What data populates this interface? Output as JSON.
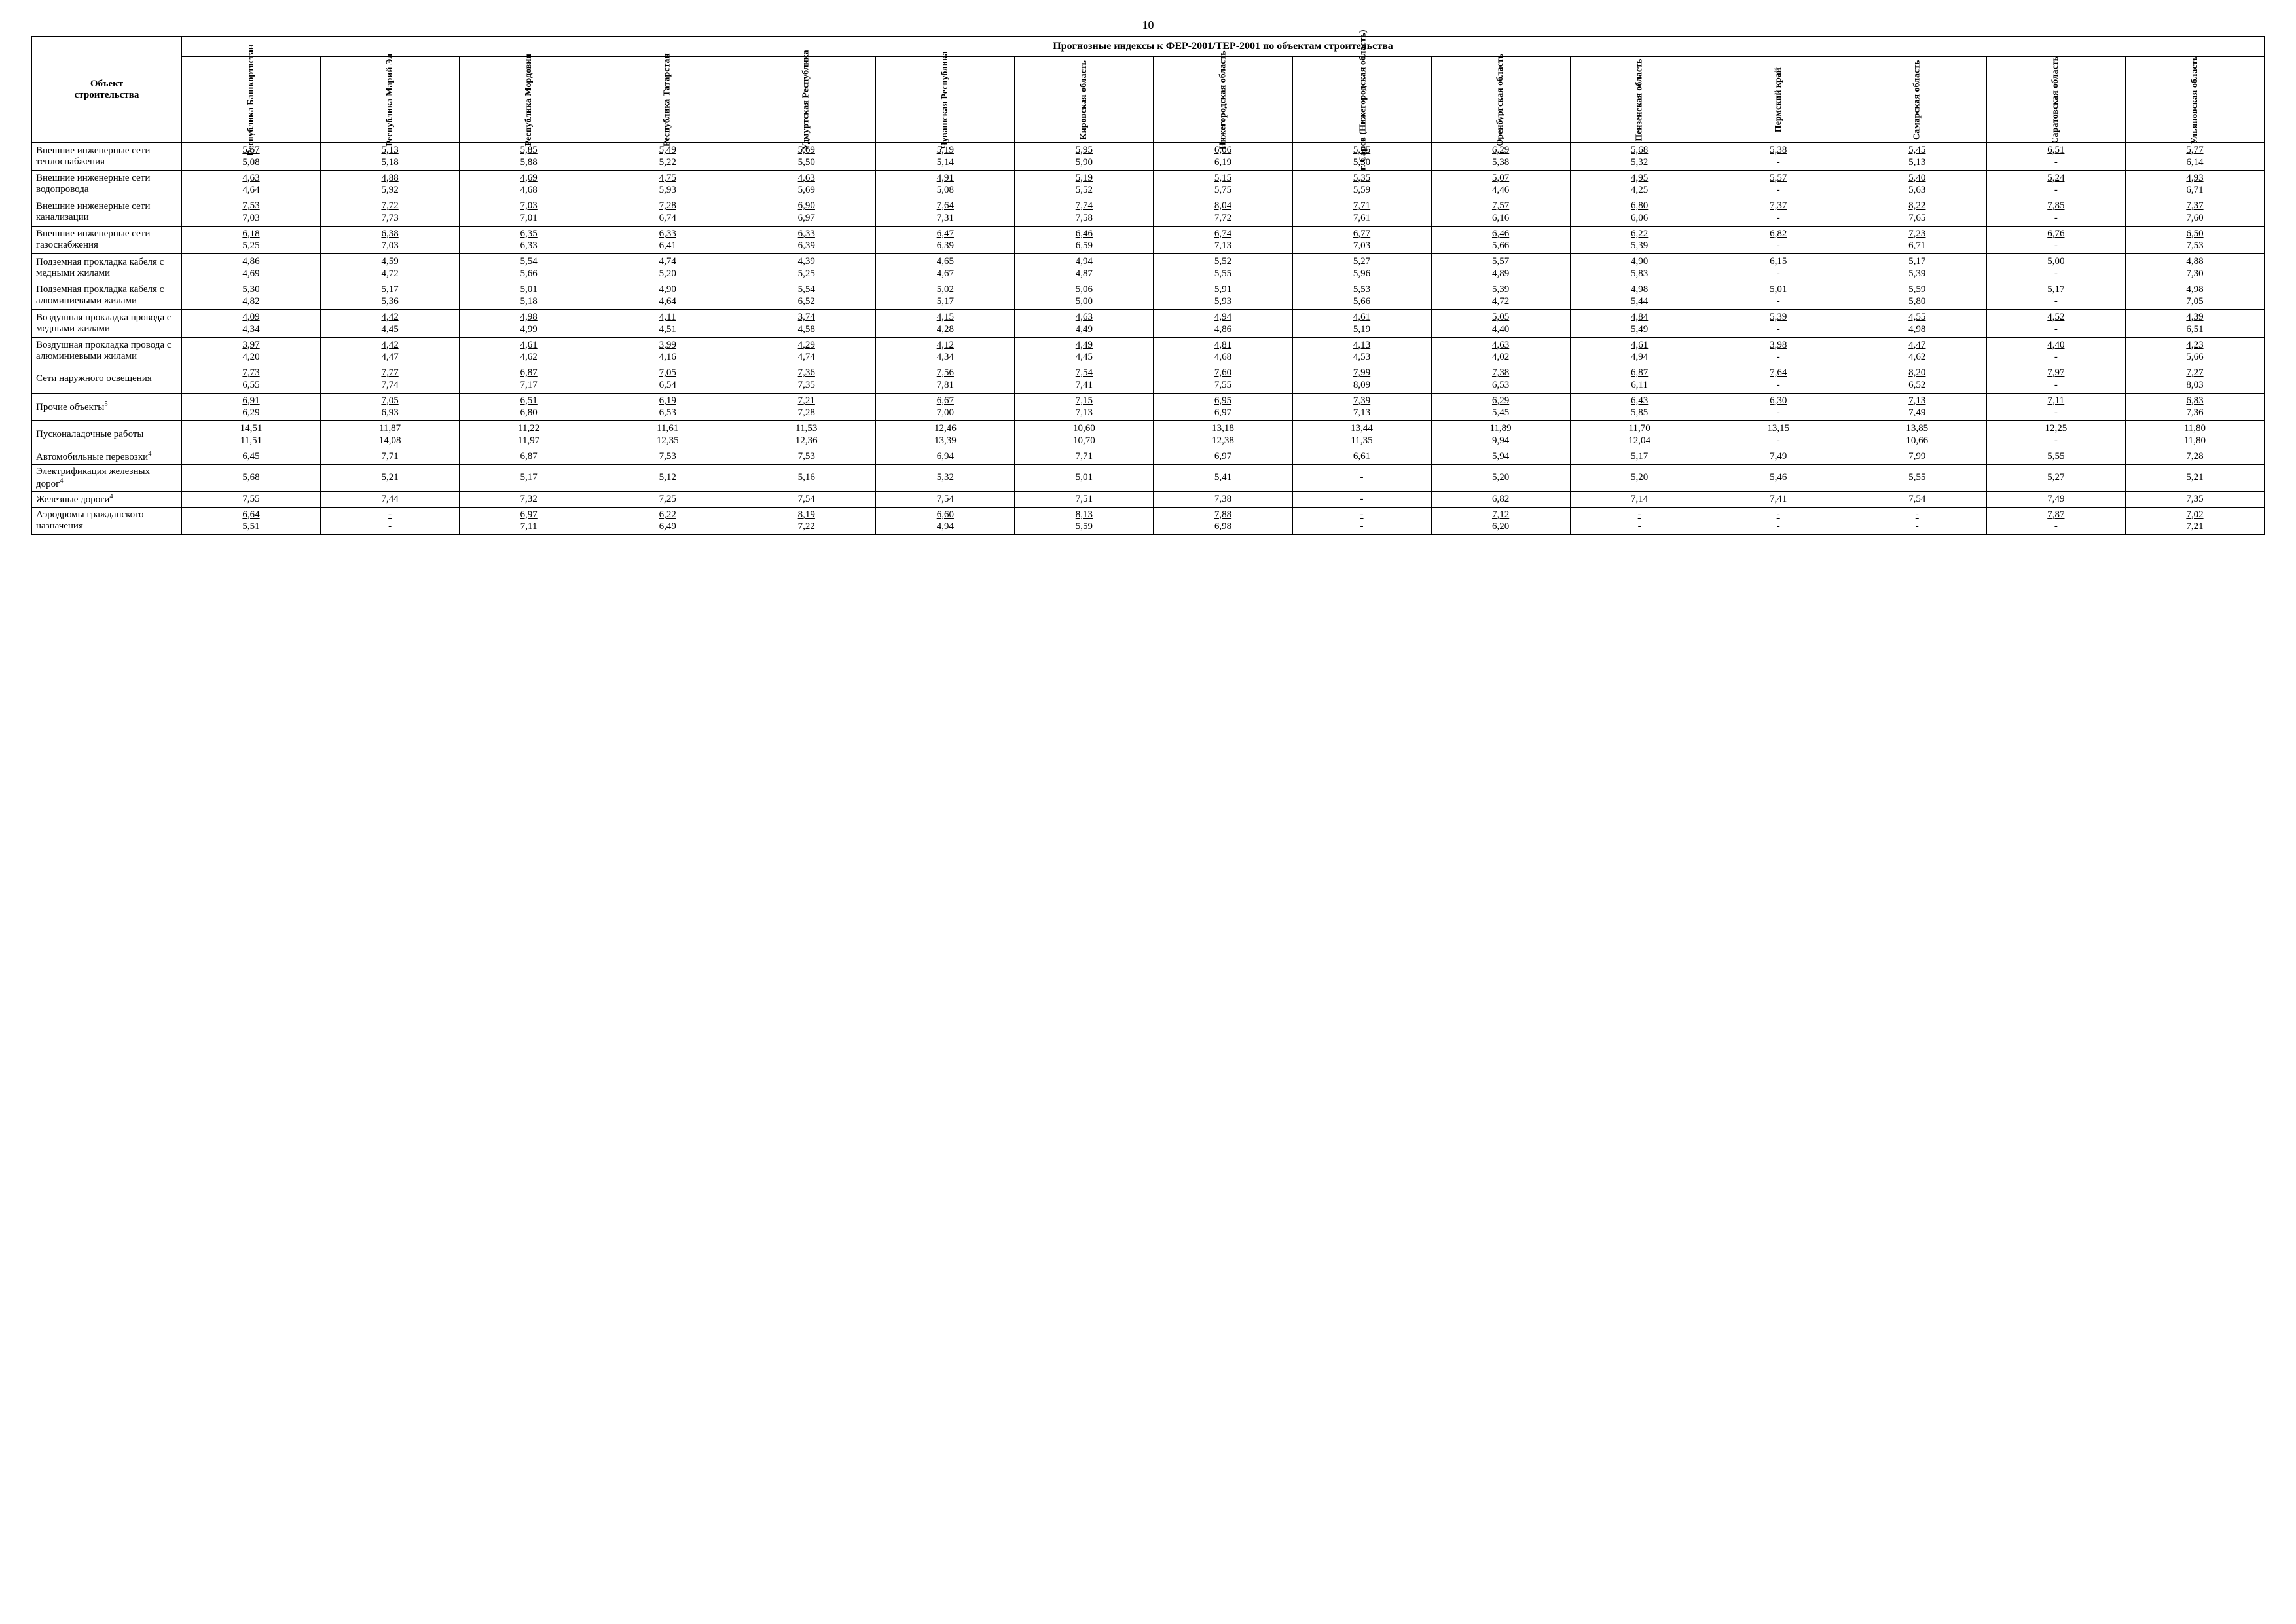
{
  "page_number": "10",
  "main_header": "Прогнозные индексы к ФЕР-2001/ТЕР-2001 по объектам строительства",
  "row_header_title": "Объект\nстроительства",
  "columns": [
    "Республика Башкортостан",
    "Республика Марий Эл",
    "Республика Мордовия",
    "Республика Татарстан",
    "Удмуртская Республика",
    "Чувашская Республика",
    "Кировская область",
    "Нижегородская область",
    "г. Саров (Нижегородская область)",
    "Оренбургская область",
    "Пензенская область",
    "Пермский край",
    "Самарская область",
    "Саратовская область",
    "Ульяновская область"
  ],
  "rows": [
    {
      "label": "Внешние инженерные сети теплоснабжения",
      "type": "double",
      "top": [
        "5,67",
        "5,13",
        "5,85",
        "5,49",
        "5,69",
        "5,19",
        "5,95",
        "6,06",
        "5,75",
        "6,29",
        "5,68",
        "5,38",
        "5,45",
        "6,51",
        "5,77"
      ],
      "bot": [
        "5,08",
        "5,18",
        "5,88",
        "5,22",
        "5,50",
        "5,14",
        "5,90",
        "6,19",
        "5,30",
        "5,38",
        "5,32",
        "-",
        "5,13",
        "-",
        "6,14"
      ]
    },
    {
      "label": "Внешние инженерные сети водопровода",
      "type": "double",
      "top": [
        "4,63",
        "4,88",
        "4,69",
        "4,75",
        "4,63",
        "4,91",
        "5,19",
        "5,15",
        "5,35",
        "5,07",
        "4,95",
        "5,57",
        "5,40",
        "5,24",
        "4,93"
      ],
      "bot": [
        "4,64",
        "5,92",
        "4,68",
        "5,93",
        "5,69",
        "5,08",
        "5,52",
        "5,75",
        "5,59",
        "4,46",
        "4,25",
        "-",
        "5,63",
        "-",
        "6,71"
      ]
    },
    {
      "label": "Внешние инженерные сети канализации",
      "type": "double",
      "top": [
        "7,53",
        "7,72",
        "7,03",
        "7,28",
        "6,90",
        "7,64",
        "7,74",
        "8,04",
        "7,71",
        "7,57",
        "6,80",
        "7,37",
        "8,22",
        "7,85",
        "7,37"
      ],
      "bot": [
        "7,03",
        "7,73",
        "7,01",
        "6,74",
        "6,97",
        "7,31",
        "7,58",
        "7,72",
        "7,61",
        "6,16",
        "6,06",
        "-",
        "7,65",
        "-",
        "7,60"
      ]
    },
    {
      "label": "Внешние инженерные сети газоснабжения",
      "type": "double",
      "top": [
        "6,18",
        "6,38",
        "6,35",
        "6,33",
        "6,33",
        "6,47",
        "6,46",
        "6,74",
        "6,77",
        "6,46",
        "6,22",
        "6,82",
        "7,23",
        "6,76",
        "6,50"
      ],
      "bot": [
        "5,25",
        "7,03",
        "6,33",
        "6,41",
        "6,39",
        "6,39",
        "6,59",
        "7,13",
        "7,03",
        "5,66",
        "5,39",
        "-",
        "6,71",
        "-",
        "7,53"
      ]
    },
    {
      "label": "Подземная прокладка кабеля с медными жилами",
      "type": "double",
      "top": [
        "4,86",
        "4,59",
        "5,54",
        "4,74",
        "4,39",
        "4,65",
        "4,94",
        "5,52",
        "5,27",
        "5,57",
        "4,90",
        "6,15",
        "5,17",
        "5,00",
        "4,88"
      ],
      "bot": [
        "4,69",
        "4,72",
        "5,66",
        "5,20",
        "5,25",
        "4,67",
        "4,87",
        "5,55",
        "5,96",
        "4,89",
        "5,83",
        "-",
        "5,39",
        "-",
        "7,30"
      ]
    },
    {
      "label": "Подземная прокладка кабеля с алюминиевыми жилами",
      "type": "double",
      "top": [
        "5,30",
        "5,17",
        "5,01",
        "4,90",
        "5,54",
        "5,02",
        "5,06",
        "5,91",
        "5,53",
        "5,39",
        "4,98",
        "5,01",
        "5,59",
        "5,17",
        "4,98"
      ],
      "bot": [
        "4,82",
        "5,36",
        "5,18",
        "4,64",
        "6,52",
        "5,17",
        "5,00",
        "5,93",
        "5,66",
        "4,72",
        "5,44",
        "-",
        "5,80",
        "-",
        "7,05"
      ]
    },
    {
      "label": "Воздушная прокладка провода с медными жилами",
      "type": "double",
      "top": [
        "4,09",
        "4,42",
        "4,98",
        "4,11",
        "3,74",
        "4,15",
        "4,63",
        "4,94",
        "4,61",
        "5,05",
        "4,84",
        "5,39",
        "4,55",
        "4,52",
        "4,39"
      ],
      "bot": [
        "4,34",
        "4,45",
        "4,99",
        "4,51",
        "4,58",
        "4,28",
        "4,49",
        "4,86",
        "5,19",
        "4,40",
        "5,49",
        "-",
        "4,98",
        "-",
        "6,51"
      ]
    },
    {
      "label": "Воздушная прокладка провода с алюминиевыми жилами",
      "type": "double",
      "top": [
        "3,97",
        "4,42",
        "4,61",
        "3,99",
        "4,29",
        "4,12",
        "4,49",
        "4,81",
        "4,13",
        "4,63",
        "4,61",
        "3,98",
        "4,47",
        "4,40",
        "4,23"
      ],
      "bot": [
        "4,20",
        "4,47",
        "4,62",
        "4,16",
        "4,74",
        "4,34",
        "4,45",
        "4,68",
        "4,53",
        "4,02",
        "4,94",
        "-",
        "4,62",
        "-",
        "5,66"
      ]
    },
    {
      "label": "Сети наружного освещения",
      "type": "double",
      "top": [
        "7,73",
        "7,77",
        "6,87",
        "7,05",
        "7,36",
        "7,56",
        "7,54",
        "7,60",
        "7,99",
        "7,38",
        "6,87",
        "7,64",
        "8,20",
        "7,97",
        "7,27"
      ],
      "bot": [
        "6,55",
        "7,74",
        "7,17",
        "6,54",
        "7,35",
        "7,81",
        "7,41",
        "7,55",
        "8,09",
        "6,53",
        "6,11",
        "-",
        "6,52",
        "-",
        "8,03"
      ]
    },
    {
      "label": "Прочие объекты",
      "sup": "5",
      "type": "double",
      "top": [
        "6,91",
        "7,05",
        "6,51",
        "6,19",
        "7,21",
        "6,67",
        "7,15",
        "6,95",
        "7,39",
        "6,29",
        "6,43",
        "6,30",
        "7,13",
        "7,11",
        "6,83"
      ],
      "bot": [
        "6,29",
        "6,93",
        "6,80",
        "6,53",
        "7,28",
        "7,00",
        "7,13",
        "6,97",
        "7,13",
        "5,45",
        "5,85",
        "-",
        "7,49",
        "-",
        "7,36"
      ]
    },
    {
      "label": "Пусконаладочные работы",
      "type": "double",
      "top": [
        "14,51",
        "11,87",
        "11,22",
        "11,61",
        "11,53",
        "12,46",
        "10,60",
        "13,18",
        "13,44",
        "11,89",
        "11,70",
        "13,15",
        "13,85",
        "12,25",
        "11,80"
      ],
      "bot": [
        "11,51",
        "14,08",
        "11,97",
        "12,35",
        "12,36",
        "13,39",
        "10,70",
        "12,38",
        "11,35",
        "9,94",
        "12,04",
        "-",
        "10,66",
        "-",
        "11,80"
      ]
    },
    {
      "label": "Автомобильные перевозки",
      "sup": "4",
      "type": "single",
      "vals": [
        "6,45",
        "7,71",
        "6,87",
        "7,53",
        "7,53",
        "6,94",
        "7,71",
        "6,97",
        "6,61",
        "5,94",
        "5,17",
        "7,49",
        "7,99",
        "5,55",
        "7,28"
      ]
    },
    {
      "label": "Электрификация железных дорог",
      "sup": "4",
      "type": "single",
      "vals": [
        "5,68",
        "5,21",
        "5,17",
        "5,12",
        "5,16",
        "5,32",
        "5,01",
        "5,41",
        "-",
        "5,20",
        "5,20",
        "5,46",
        "5,55",
        "5,27",
        "5,21"
      ]
    },
    {
      "label": "Железные дороги",
      "sup": "4",
      "type": "single",
      "vals": [
        "7,55",
        "7,44",
        "7,32",
        "7,25",
        "7,54",
        "7,54",
        "7,51",
        "7,38",
        "-",
        "6,82",
        "7,14",
        "7,41",
        "7,54",
        "7,49",
        "7,35"
      ]
    },
    {
      "label": "Аэродромы гражданского назначения",
      "type": "double",
      "top": [
        "6,64",
        "-",
        "6,97",
        "6,22",
        "8,19",
        "6,60",
        "8,13",
        "7,88",
        "-",
        "7,12",
        "-",
        "-",
        "-",
        "7,87",
        "7,02"
      ],
      "bot": [
        "5,51",
        "-",
        "7,11",
        "6,49",
        "7,22",
        "4,94",
        "5,59",
        "6,98",
        "-",
        "6,20",
        "-",
        "-",
        "-",
        "-",
        "7,21"
      ]
    }
  ]
}
